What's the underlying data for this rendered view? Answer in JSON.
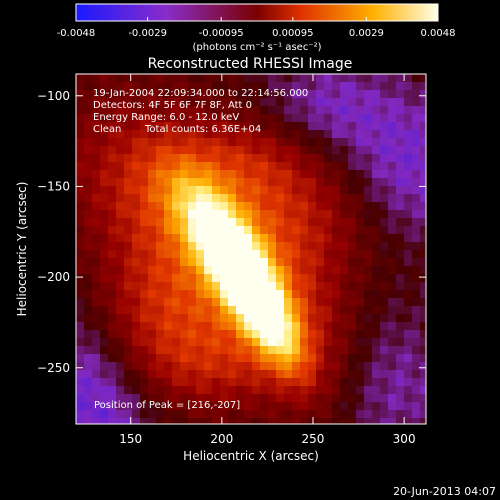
{
  "colorbar": {
    "ticks": [
      "-0.0048",
      "-0.0029",
      "-0.00095",
      "0.00095",
      "0.0029",
      "0.0048"
    ],
    "tick_values": [
      -0.0048,
      -0.0029,
      -0.00095,
      0.00095,
      0.0029,
      0.0048
    ],
    "range": [
      -0.0048,
      0.0048
    ],
    "unit_label": "(photons cm⁻² s⁻¹ asec⁻²)"
  },
  "chart_data": {
    "type": "heatmap",
    "title": "Reconstructed RHESSI Image",
    "xlabel": "Heliocentric X (arcsec)",
    "ylabel": "Heliocentric Y (arcsec)",
    "xlim": [
      120,
      312
    ],
    "ylim": [
      -281,
      -88
    ],
    "xticks": [
      150,
      200,
      250,
      300
    ],
    "yticks": [
      -100,
      -150,
      -200,
      -250
    ],
    "xtick_labels": [
      "150",
      "200",
      "250",
      "300"
    ],
    "ytick_labels": [
      "−100",
      "−150",
      "−200",
      "−250"
    ],
    "peak": [
      216,
      -207
    ],
    "annotations": {
      "time_range": "19-Jan-2004 22:09:34.000 to 22:14:56.000",
      "detectors": "Detectors: 4F 5F 6F 7F 8F, Att 0",
      "energy": "Energy Range: 6.0 - 12.0 keV",
      "method": "Clean",
      "counts": "Total counts: 6.36E+04",
      "peak_text": "Position of Peak = [216,-207]"
    },
    "colormap": [
      "#1a1aff",
      "#8a2cc8",
      "#7a0000",
      "#e03000",
      "#ffb000",
      "#ffffe8"
    ]
  },
  "footer": {
    "date": "20-Jun-2013 04:07"
  }
}
